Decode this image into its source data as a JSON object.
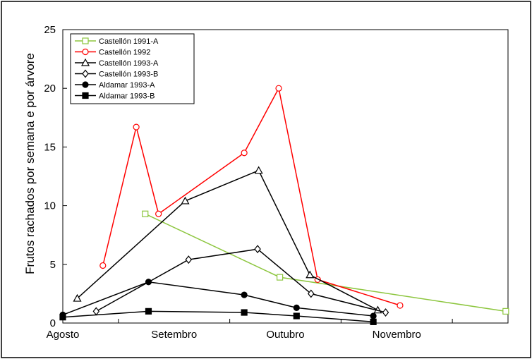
{
  "chart_data": {
    "type": "line",
    "title": "",
    "xlabel": "",
    "ylabel": "Frutos rachados por semana e por árvore",
    "ylim": [
      0,
      25
    ],
    "yticks": [
      "0",
      "5",
      "10",
      "15",
      "20",
      "25"
    ],
    "xlim": [
      0,
      4
    ],
    "xtick_values": [
      0,
      1,
      2,
      3
    ],
    "xticks": [
      "Agosto",
      "Setembro",
      "Outubro",
      "Novembro"
    ],
    "grid": false,
    "legend_position": "top-left",
    "series": [
      {
        "name": "Castellón 1991-A",
        "color": "#8dc63f",
        "marker": "square-open",
        "x": [
          0.74,
          1.95,
          3.98
        ],
        "y": [
          9.3,
          3.9,
          1.0
        ]
      },
      {
        "name": "Castellón 1992",
        "color": "#ff0000",
        "marker": "circle-open",
        "x": [
          0.36,
          0.66,
          0.86,
          1.63,
          1.94,
          2.29,
          3.03
        ],
        "y": [
          4.9,
          16.7,
          9.3,
          14.5,
          20.0,
          3.7,
          1.5
        ]
      },
      {
        "name": "Castellón 1993-A",
        "color": "#000000",
        "marker": "triangle-open",
        "x": [
          0.13,
          1.1,
          1.76,
          2.22,
          2.83
        ],
        "y": [
          2.1,
          10.4,
          13.0,
          4.1,
          1.1
        ]
      },
      {
        "name": "Castellón 1993-B",
        "color": "#000000",
        "marker": "diamond-open",
        "x": [
          0.3,
          1.13,
          1.75,
          2.23,
          2.9
        ],
        "y": [
          1.0,
          5.4,
          6.3,
          2.5,
          0.9
        ]
      },
      {
        "name": "Aldamar 1993-A",
        "color": "#000000",
        "marker": "circle-filled",
        "x": [
          0.0,
          0.77,
          1.63,
          2.1,
          2.79
        ],
        "y": [
          0.7,
          3.5,
          2.4,
          1.3,
          0.6
        ]
      },
      {
        "name": "Aldamar 1993-B",
        "color": "#000000",
        "marker": "square-filled",
        "x": [
          0.0,
          0.77,
          1.63,
          2.1,
          2.79
        ],
        "y": [
          0.5,
          1.0,
          0.9,
          0.6,
          0.1
        ]
      }
    ]
  }
}
